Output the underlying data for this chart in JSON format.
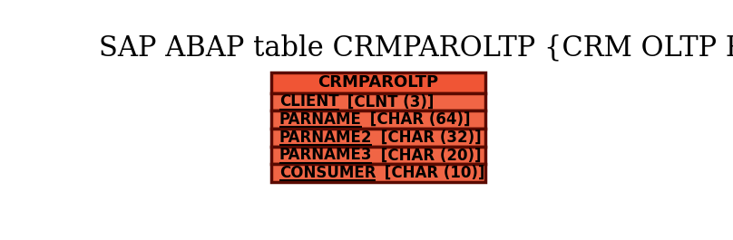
{
  "title": "SAP ABAP table CRMPAROLTP {CRM OLTP Parameters}",
  "title_fontsize": 22,
  "title_color": "#000000",
  "background_color": "#ffffff",
  "table_name": "CRMPAROLTP",
  "header_bg_color": "#f05535",
  "header_border_color": "#5a0a00",
  "row_bg_color": "#f06545",
  "row_border_color": "#5a0a00",
  "fields": [
    {
      "underlined": "CLIENT",
      "rest": " [CLNT (3)]"
    },
    {
      "underlined": "PARNAME",
      "rest": " [CHAR (64)]"
    },
    {
      "underlined": "PARNAME2",
      "rest": " [CHAR (32)]"
    },
    {
      "underlined": "PARNAME3",
      "rest": " [CHAR (20)]"
    },
    {
      "underlined": "CONSUMER",
      "rest": " [CHAR (10)]"
    }
  ],
  "field_fontsize": 12,
  "header_fontsize": 13
}
